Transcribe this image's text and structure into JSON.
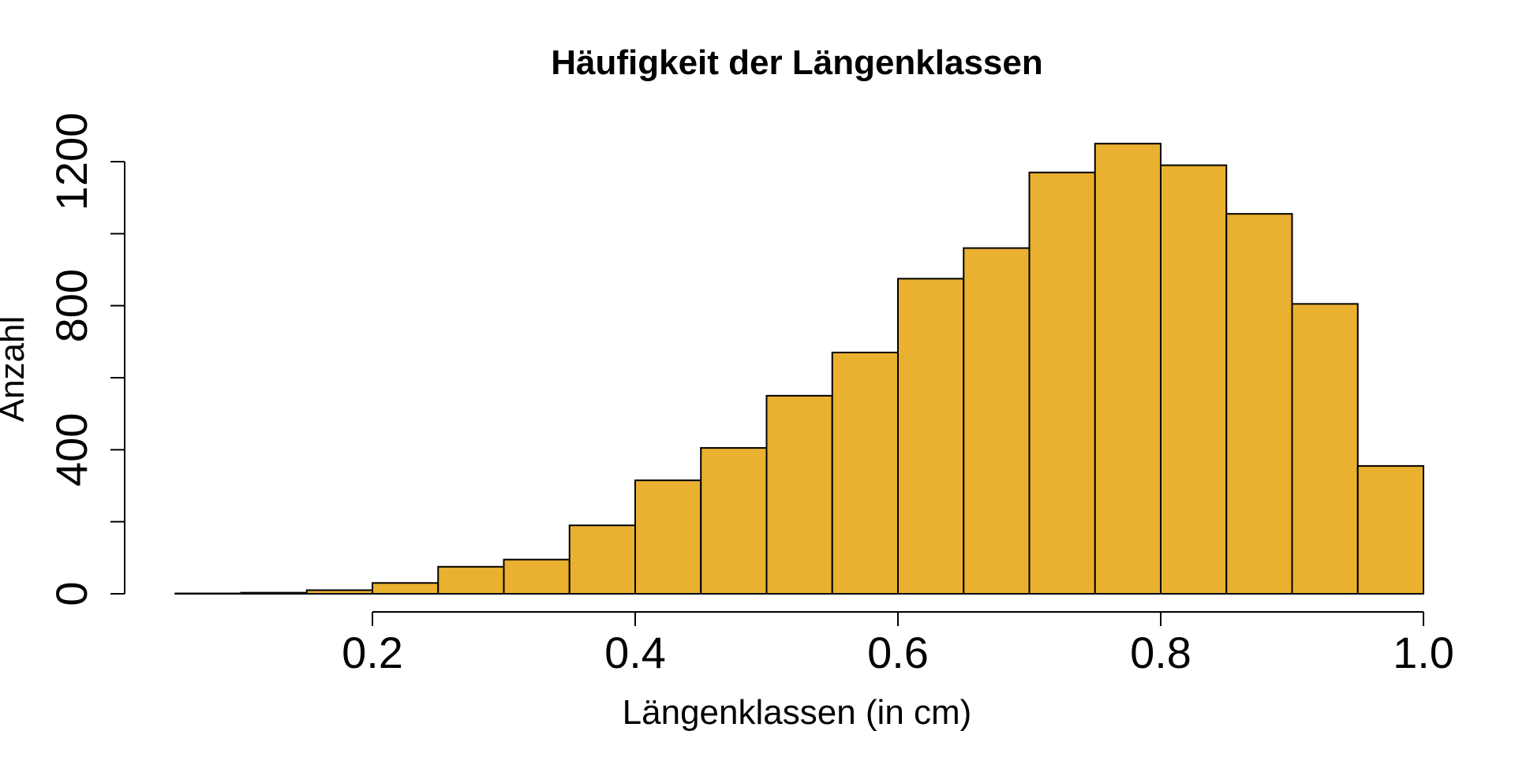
{
  "chart_data": {
    "type": "bar",
    "title": "Häufigkeit der Längenklassen",
    "xlabel": "Längenklassen (in cm)",
    "ylabel": "Anzahl",
    "bin_edges": [
      0.05,
      0.1,
      0.15,
      0.2,
      0.25,
      0.3,
      0.35,
      0.4,
      0.45,
      0.5,
      0.55,
      0.6,
      0.65,
      0.7,
      0.75,
      0.8,
      0.85,
      0.9,
      0.95,
      1.0
    ],
    "values": [
      1,
      3,
      10,
      30,
      75,
      95,
      190,
      315,
      405,
      550,
      670,
      875,
      960,
      1170,
      1250,
      1190,
      1055,
      805,
      355
    ],
    "xlim": [
      0.05,
      1.0
    ],
    "ylim": [
      0,
      1300
    ],
    "x_ticks": [
      0.2,
      0.4,
      0.6,
      0.8,
      1.0
    ],
    "x_tick_labels": [
      "0.2",
      "0.4",
      "0.6",
      "0.8",
      "1.0"
    ],
    "y_ticks": [
      0,
      200,
      400,
      600,
      800,
      1000,
      1200
    ],
    "y_tick_labels": [
      "0",
      "",
      "400",
      "",
      "800",
      "",
      "1200"
    ],
    "bar_color": "#EAB030",
    "grid": false,
    "legend": "none"
  }
}
